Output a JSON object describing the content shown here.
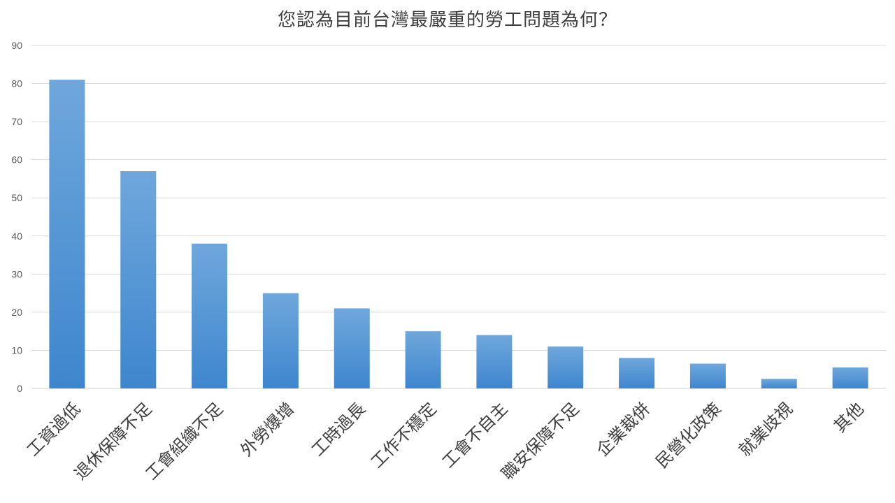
{
  "chart_data": {
    "type": "bar",
    "title": "您認為目前台灣最嚴重的勞工問題為何？",
    "xlabel": "",
    "ylabel": "",
    "categories": [
      "工資過低",
      "退休保障不足",
      "工會組織不足",
      "外勞爆增",
      "工時過長",
      "工作不穩定",
      "工會不自主",
      "職安保障不足",
      "企業裁併",
      "民營化政策",
      "就業歧視",
      "其他"
    ],
    "values": [
      81,
      57,
      38,
      25,
      21,
      15,
      14,
      11,
      8,
      6.5,
      2.5,
      5.5
    ],
    "ylim": [
      0,
      90
    ],
    "yticks": [
      0,
      10,
      20,
      30,
      40,
      50,
      60,
      70,
      80,
      90
    ],
    "grid": true,
    "legend": "none",
    "bar_color_top": "#6fa7dc",
    "bar_color_bottom": "#3e86ce",
    "grid_color": "#d9d9d9"
  }
}
